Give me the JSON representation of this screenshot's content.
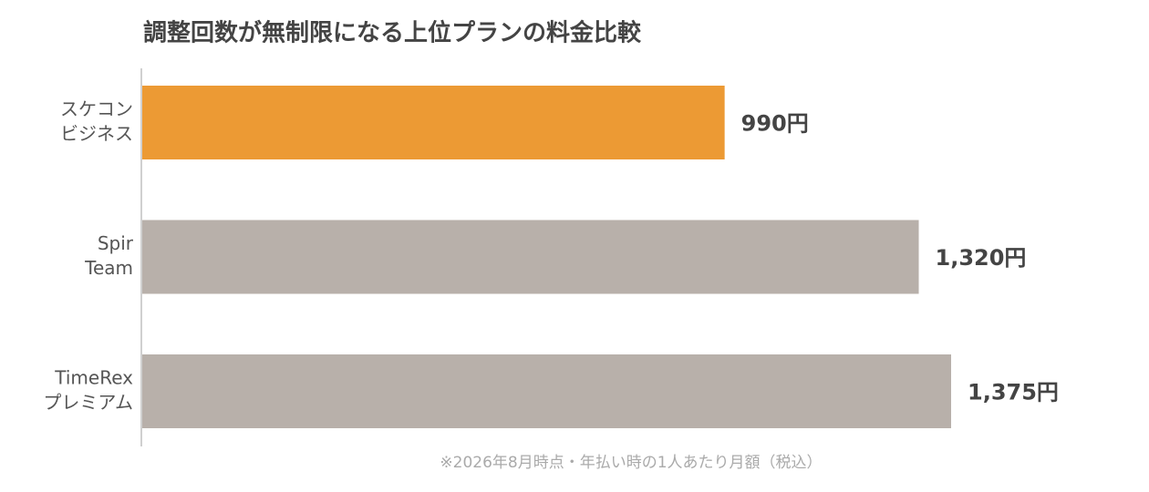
{
  "chart_data": {
    "type": "bar",
    "orientation": "horizontal",
    "title": "調整回数が無制限になる上位プランの料金比較",
    "categories": [
      [
        "スケコン",
        "ビジネス"
      ],
      [
        "Spir",
        "Team"
      ],
      [
        "TimeRex",
        "プレミアム"
      ]
    ],
    "values": [
      990,
      1320,
      1375
    ],
    "value_labels": [
      "990円",
      "1,320円",
      "1,375円"
    ],
    "colors": [
      "#ec9a34",
      "#b8b0aa",
      "#b8b0aa"
    ],
    "note": "※2026年8月時点・年払い時の1人あたり月額（税込）"
  }
}
